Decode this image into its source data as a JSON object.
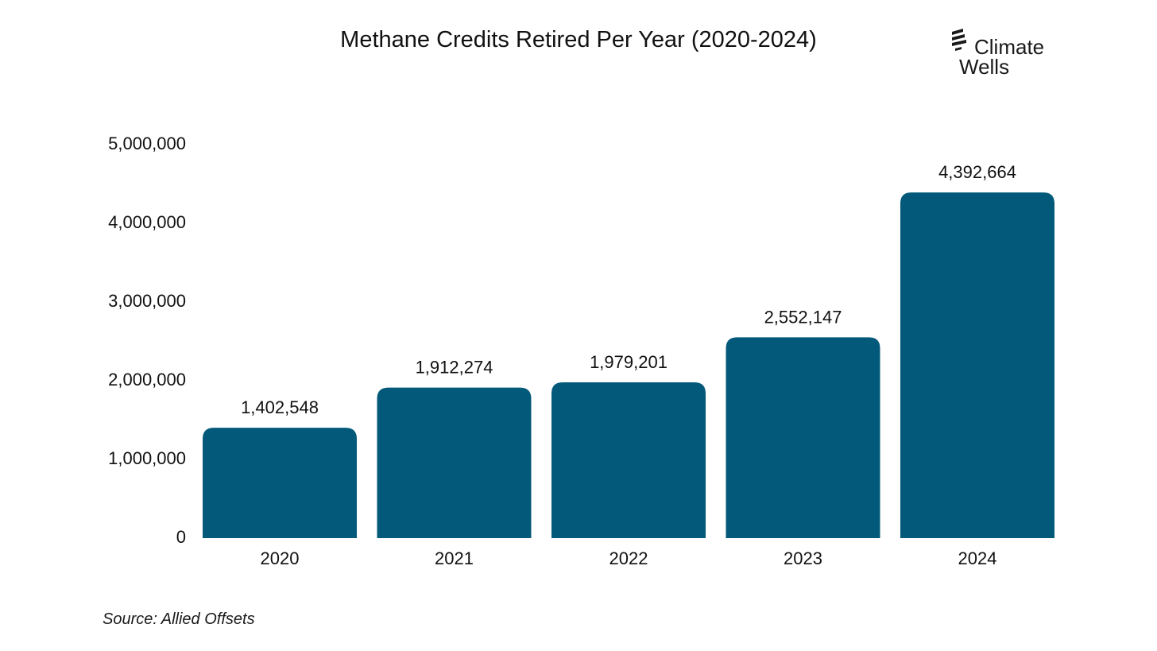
{
  "brand": {
    "line1": "Climate",
    "line2": "Wells",
    "bar_color": "#03597a"
  },
  "source": "Source: Allied Offsets",
  "chart_data": {
    "type": "bar",
    "title": "Methane Credits Retired Per Year (2020-2024)",
    "xlabel": "",
    "ylabel": "",
    "categories": [
      "2020",
      "2021",
      "2022",
      "2023",
      "2024"
    ],
    "values": [
      1402548,
      1912274,
      1979201,
      2552147,
      4392664
    ],
    "value_labels": [
      "1,402,548",
      "1,912,274",
      "1,979,201",
      "2,552,147",
      "4,392,664"
    ],
    "ylim": [
      0,
      5000000
    ],
    "yticks": [
      0,
      1000000,
      2000000,
      3000000,
      4000000,
      5000000
    ],
    "ytick_labels": [
      "0",
      "1,000,000",
      "2,000,000",
      "3,000,000",
      "4,000,000",
      "5,000,000"
    ],
    "grid": false,
    "legend": "none"
  }
}
